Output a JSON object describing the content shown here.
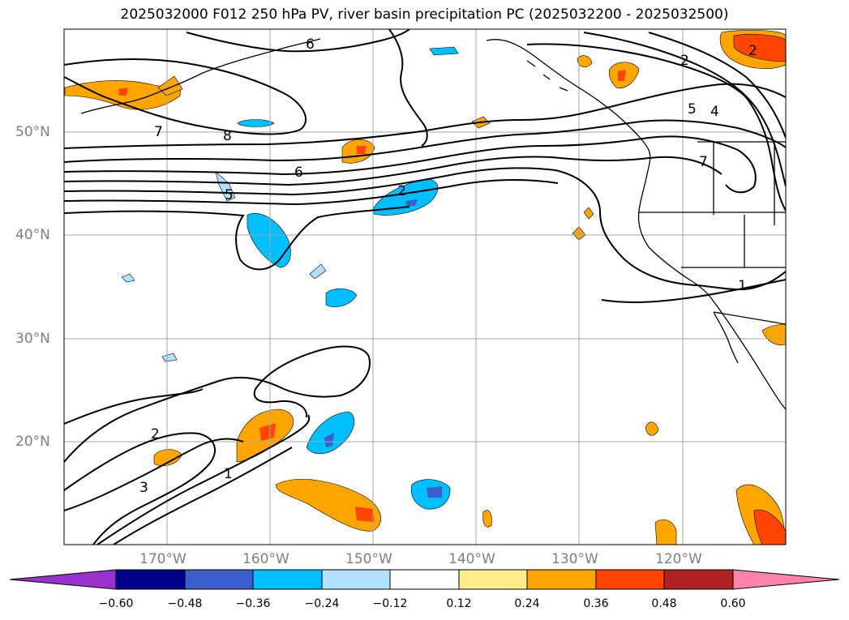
{
  "title": "2025032000 F012 250 hPa PV, river basin precipitation PC (2025032200 - 2025032500)",
  "map": {
    "lat_labels": [
      "50°N",
      "40°N",
      "30°N",
      "20°N"
    ],
    "lon_labels": [
      "170°W",
      "160°W",
      "150°W",
      "140°W",
      "130°W",
      "120°W"
    ],
    "contour_labels": [
      "6",
      "7",
      "8",
      "6",
      "5",
      "2",
      "2",
      "5",
      "4",
      "7",
      "1",
      "2",
      "3",
      "1",
      "2"
    ],
    "colors": {
      "land_border": "#000000",
      "grid": "#a6a6a6",
      "contour": "#000000"
    }
  },
  "colorbar": {
    "tick_labels": [
      "−0.60",
      "−0.48",
      "−0.36",
      "−0.24",
      "−0.12",
      "0.12",
      "0.24",
      "0.36",
      "0.48",
      "0.60"
    ],
    "colors": [
      "#9932cc",
      "#00008b",
      "#3a5fcd",
      "#00bfff",
      "#b0e2ff",
      "#ffffff",
      "#ffec8b",
      "#ffa500",
      "#ff4500",
      "#b22222",
      "#ff82ab"
    ]
  }
}
